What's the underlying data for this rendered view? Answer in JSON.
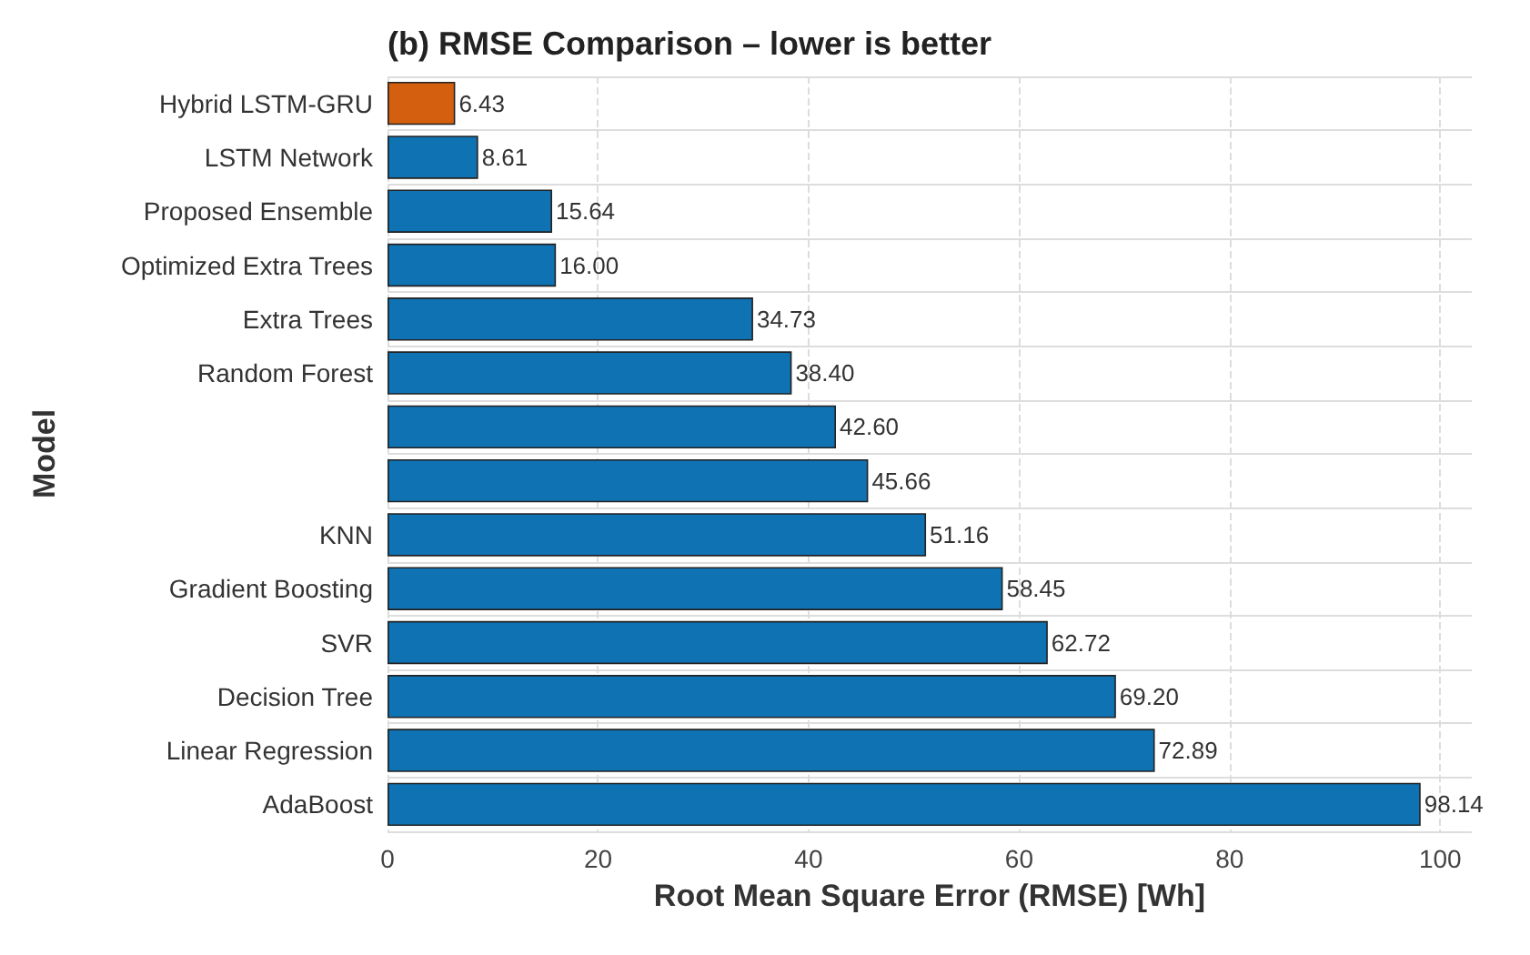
{
  "chart_data": {
    "type": "bar",
    "orientation": "horizontal",
    "title": "(b) RMSE Comparison – lower is better",
    "xlabel": "Root Mean Square Error (RMSE) [Wh]",
    "ylabel": "Model",
    "categories": [
      "Hybrid LSTM-GRU",
      "LSTM Network",
      "Proposed Ensemble",
      "Optimized Extra Trees",
      "Extra Trees",
      "Random Forest",
      null,
      null,
      "KNN",
      "Gradient Boosting",
      "SVR",
      "Decision Tree",
      "Linear Regression",
      "AdaBoost"
    ],
    "values": [
      6.43,
      8.61,
      15.64,
      16.0,
      34.73,
      38.4,
      42.6,
      45.66,
      51.16,
      58.45,
      62.72,
      69.2,
      72.89,
      98.14
    ],
    "value_labels": [
      "6.43",
      "8.61",
      "15.64",
      "16.00",
      "34.73",
      "38.40",
      "42.60",
      "45.66",
      "51.16",
      "58.45",
      "62.72",
      "69.20",
      "72.89",
      "98.14"
    ],
    "colors": [
      "#d35f0f",
      "#0f72b3",
      "#0f72b3",
      "#0f72b3",
      "#0f72b3",
      "#0f72b3",
      "#0f72b3",
      "#0f72b3",
      "#0f72b3",
      "#0f72b3",
      "#0f72b3",
      "#0f72b3",
      "#0f72b3",
      "#0f72b3"
    ],
    "xlim": [
      0,
      103
    ],
    "xticks": [
      0,
      20,
      40,
      60,
      80,
      100
    ],
    "grid": true
  }
}
